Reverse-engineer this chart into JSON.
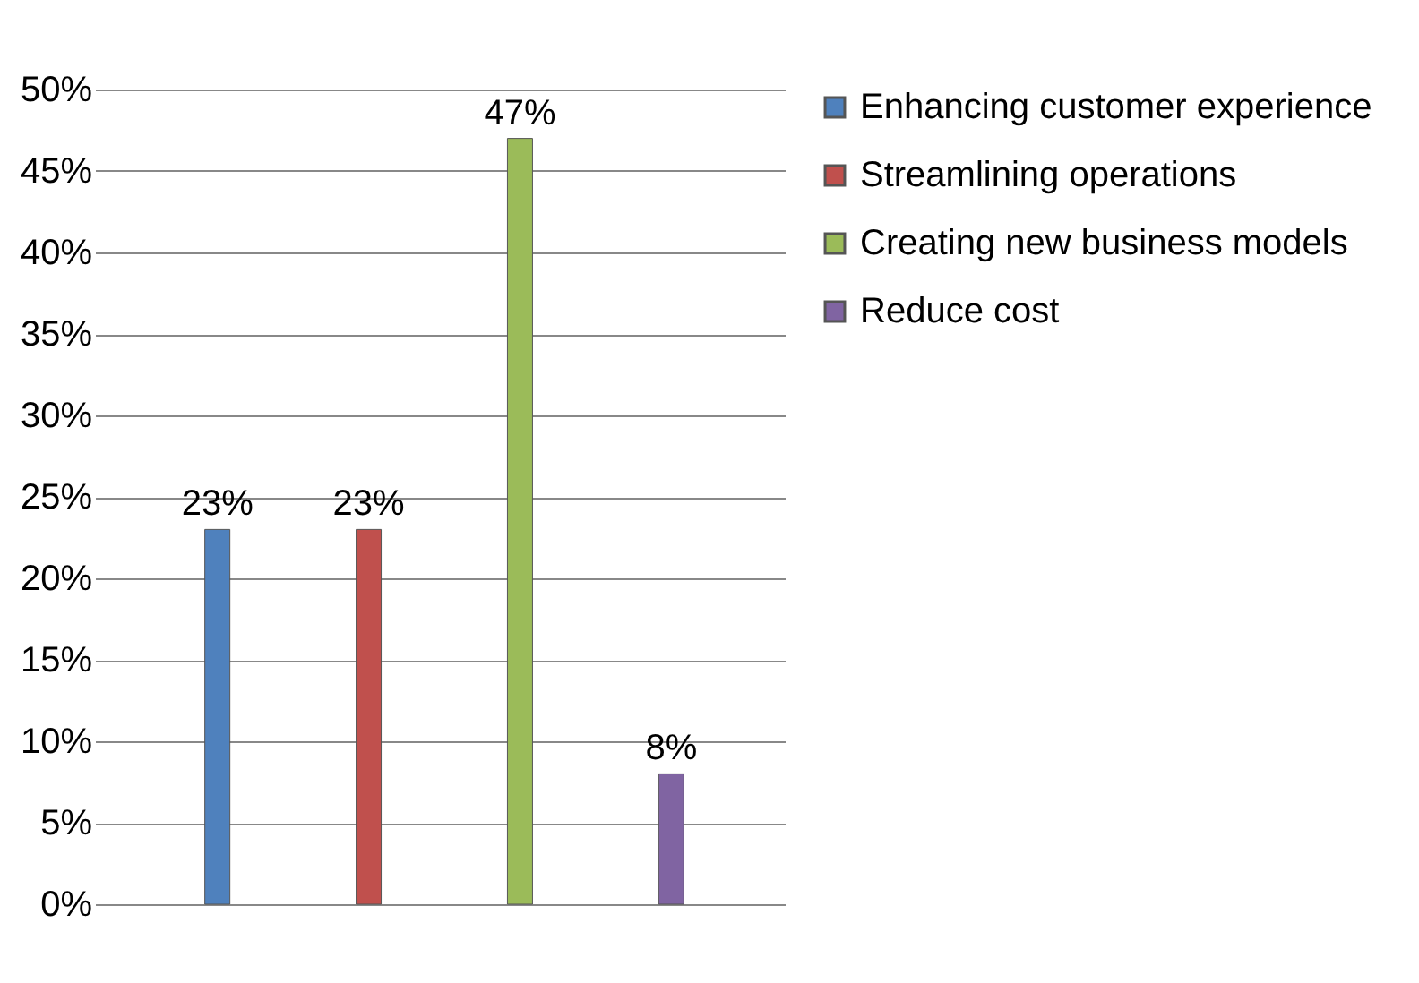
{
  "chart_data": {
    "type": "bar",
    "categories": [
      null,
      null,
      null,
      null
    ],
    "series": [
      {
        "name": "Enhancing customer experience",
        "color": "#4f81bd",
        "values": [
          23,
          null,
          null,
          null
        ],
        "value_labels": [
          "23%",
          null,
          null,
          null
        ]
      },
      {
        "name": "Streamlining operations",
        "color": "#c0504d",
        "values": [
          null,
          23,
          null,
          null
        ],
        "value_labels": [
          null,
          "23%",
          null,
          null
        ]
      },
      {
        "name": "Creating new business models",
        "color": "#9bbb59",
        "values": [
          null,
          null,
          47,
          null
        ],
        "value_labels": [
          null,
          null,
          "47%",
          null
        ]
      },
      {
        "name": "Reduce cost",
        "color": "#8064a2",
        "values": [
          null,
          null,
          null,
          8
        ],
        "value_labels": [
          null,
          null,
          null,
          "8%"
        ]
      }
    ],
    "ylim": [
      0,
      50
    ],
    "yticks": [
      {
        "value": 0,
        "label": "0%"
      },
      {
        "value": 5,
        "label": "5%"
      },
      {
        "value": 10,
        "label": "10%"
      },
      {
        "value": 15,
        "label": "15%"
      },
      {
        "value": 20,
        "label": "20%"
      },
      {
        "value": 25,
        "label": "25%"
      },
      {
        "value": 30,
        "label": "30%"
      },
      {
        "value": 35,
        "label": "35%"
      },
      {
        "value": 40,
        "label": "40%"
      },
      {
        "value": 45,
        "label": "45%"
      },
      {
        "value": 50,
        "label": "50%"
      }
    ],
    "grid": "y",
    "legend": "right"
  }
}
